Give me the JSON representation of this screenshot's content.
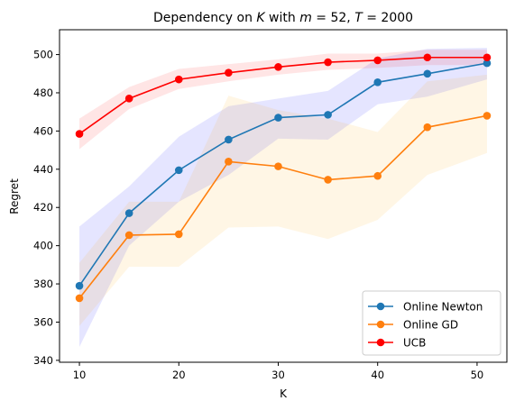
{
  "chart_data": {
    "type": "line",
    "title": "Dependency on K with m = 52, T = 2000",
    "xlabel": "K",
    "ylabel": "Regret",
    "xlim": [
      8,
      53
    ],
    "ylim": [
      339,
      513
    ],
    "xticks": [
      10,
      20,
      30,
      40,
      50
    ],
    "yticks": [
      340,
      360,
      380,
      400,
      420,
      440,
      460,
      480,
      500
    ],
    "grid": false,
    "legend_position": "lower-right",
    "x": [
      10,
      15,
      20,
      25,
      30,
      35,
      40,
      45,
      51
    ],
    "series": [
      {
        "name": "Online Newton",
        "color": "#1f77b4",
        "band_color": "#0000ff",
        "values": [
          379,
          417,
          439.5,
          455.5,
          467,
          468.5,
          485.5,
          490,
          495.5
        ],
        "lower": [
          347,
          400,
          423,
          437,
          456,
          455.5,
          474,
          478,
          487
        ],
        "upper": [
          410,
          431,
          457,
          473,
          477,
          481,
          498,
          503,
          503.5
        ]
      },
      {
        "name": "Online GD",
        "color": "#ff7f0e",
        "band_color": "#ffa500",
        "values": [
          372.5,
          405.5,
          406,
          444,
          441.5,
          434.5,
          436.5,
          462,
          468
        ],
        "lower": [
          358,
          389,
          389,
          409.5,
          410,
          403.5,
          413.5,
          437,
          448.5
        ],
        "upper": [
          391,
          423,
          423,
          478.5,
          471,
          466.5,
          459.5,
          486,
          489.5
        ]
      },
      {
        "name": "UCB",
        "color": "#ff0000",
        "band_color": "#ff0000",
        "values": [
          458.5,
          477,
          487,
          490.5,
          493.5,
          496,
          497,
          498.5,
          498.5
        ],
        "lower": [
          450.5,
          471.5,
          482,
          486,
          489.5,
          492,
          493,
          494.5,
          494.5
        ],
        "upper": [
          466.5,
          483,
          492.5,
          495,
          497.5,
          500.5,
          500.5,
          502.5,
          502.5
        ]
      }
    ]
  }
}
